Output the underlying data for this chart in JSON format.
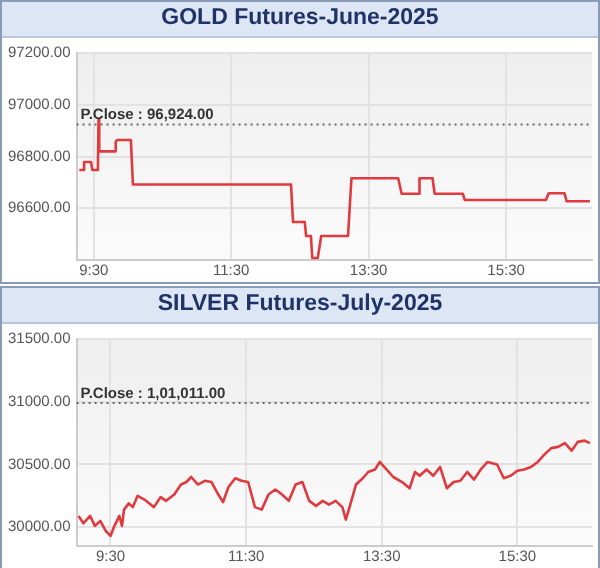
{
  "chart_data": [
    {
      "type": "line",
      "title": "GOLD Futures-June-2025",
      "grid": true,
      "legend": false,
      "marker": "none",
      "line_style": "solid",
      "xlim": [
        9.25,
        16.75
      ],
      "xticks": [
        {
          "value": 9.5,
          "label": "9:30"
        },
        {
          "value": 11.5,
          "label": "11:30"
        },
        {
          "value": 13.5,
          "label": "13:30"
        },
        {
          "value": 15.5,
          "label": "15:30"
        }
      ],
      "ylim": [
        96400,
        97200
      ],
      "yticks": [
        {
          "value": 96600,
          "label": "96600.00"
        },
        {
          "value": 96800,
          "label": "96800.00"
        },
        {
          "value": 97000,
          "label": "97000.00"
        },
        {
          "value": 97200,
          "label": "97200.00"
        }
      ],
      "ref_lines": [
        {
          "axis": "y",
          "value": 96924,
          "label": "P.Close : 96,924.00",
          "color": "#666666",
          "line_style": "dotted"
        }
      ],
      "series": [
        {
          "color": "#e0393e",
          "x": [
            9.29,
            9.36,
            9.36,
            9.46,
            9.48,
            9.56,
            9.57,
            9.58,
            9.8,
            9.82,
            9.84,
            10.04,
            10.07,
            12.37,
            12.4,
            12.57,
            12.59,
            12.66,
            12.68,
            12.76,
            12.81,
            12.86,
            13.2,
            13.25,
            13.93,
            13.98,
            14.22,
            14.24,
            14.43,
            14.46,
            14.87,
            14.9,
            16.08,
            16.12,
            16.35,
            16.38,
            16.72
          ],
          "values": [
            96748,
            96748,
            96779,
            96779,
            96748,
            96748,
            96942,
            96820,
            96820,
            96857,
            96864,
            96864,
            96692,
            96692,
            96547,
            96547,
            96493,
            96493,
            96408,
            96408,
            96493,
            96493,
            96493,
            96716,
            96716,
            96656,
            96656,
            96716,
            96716,
            96656,
            96656,
            96632,
            96632,
            96658,
            96658,
            96627,
            96627
          ]
        }
      ]
    },
    {
      "type": "line",
      "title": "SILVER Futures-July-2025",
      "grid": true,
      "legend": false,
      "marker": "none",
      "line_style": "solid",
      "xlim": [
        9.0,
        16.6
      ],
      "xticks": [
        {
          "value": 9.5,
          "label": "9:30"
        },
        {
          "value": 11.5,
          "label": "11:30"
        },
        {
          "value": 13.5,
          "label": "13:30"
        },
        {
          "value": 15.5,
          "label": "15:30"
        }
      ],
      "ylim": [
        29850,
        31500
      ],
      "yticks": [
        {
          "value": 30000,
          "label": "30000.00"
        },
        {
          "value": 30500,
          "label": "30500.00"
        },
        {
          "value": 31000,
          "label": "31000.00"
        },
        {
          "value": 31500,
          "label": "31500.00"
        }
      ],
      "ref_lines": [
        {
          "axis": "y",
          "value": 30990,
          "color": "#666666",
          "line_style": "dotted"
        }
      ],
      "annotations": [
        "P.Close : 1,01,011.00"
      ],
      "series": [
        {
          "color": "#e0393e",
          "x": [
            9.03,
            9.1,
            9.2,
            9.27,
            9.35,
            9.43,
            9.5,
            9.55,
            9.63,
            9.67,
            9.7,
            9.77,
            9.83,
            9.9,
            10.0,
            10.07,
            10.14,
            10.24,
            10.32,
            10.44,
            10.54,
            10.62,
            10.69,
            10.79,
            10.89,
            10.99,
            11.09,
            11.16,
            11.24,
            11.34,
            11.43,
            11.53,
            11.63,
            11.73,
            11.83,
            11.93,
            12.03,
            12.13,
            12.23,
            12.33,
            12.43,
            12.53,
            12.63,
            12.72,
            12.82,
            12.92,
            12.97,
            13.02,
            13.12,
            13.22,
            13.3,
            13.4,
            13.47,
            13.57,
            13.67,
            13.8,
            13.91,
            13.99,
            14.06,
            14.16,
            14.26,
            14.36,
            14.46,
            14.56,
            14.66,
            14.76,
            14.86,
            14.96,
            15.06,
            15.2,
            15.3,
            15.4,
            15.5,
            15.6,
            15.7,
            15.8,
            15.9,
            16.0,
            16.1,
            16.2,
            16.3,
            16.39,
            16.49,
            16.57
          ],
          "values": [
            30090,
            30030,
            30090,
            30010,
            30050,
            29970,
            29930,
            30000,
            30090,
            30010,
            30140,
            30190,
            30160,
            30250,
            30220,
            30190,
            30160,
            30240,
            30210,
            30260,
            30340,
            30360,
            30400,
            30340,
            30370,
            30360,
            30260,
            30200,
            30320,
            30390,
            30370,
            30360,
            30160,
            30140,
            30260,
            30300,
            30260,
            30210,
            30340,
            30360,
            30210,
            30170,
            30210,
            30180,
            30210,
            30160,
            30060,
            30150,
            30340,
            30390,
            30440,
            30460,
            30520,
            30460,
            30400,
            30360,
            30310,
            30440,
            30410,
            30460,
            30410,
            30480,
            30310,
            30360,
            30370,
            30440,
            30380,
            30460,
            30520,
            30500,
            30390,
            30410,
            30450,
            30460,
            30480,
            30520,
            30580,
            30630,
            30640,
            30670,
            30610,
            30680,
            30690,
            30670
          ]
        }
      ]
    }
  ]
}
